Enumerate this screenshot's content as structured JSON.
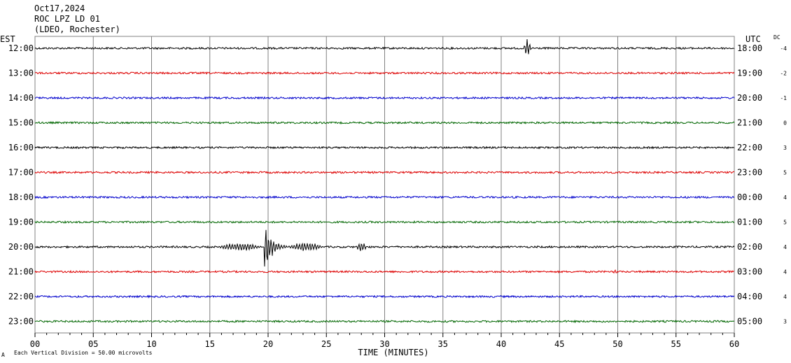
{
  "header": {
    "date": "Oct17,2024",
    "station": "ROC LPZ LD 01",
    "network": "(LDEO, Rochester)"
  },
  "labels": {
    "left_tz": "EST",
    "right_tz": "UTC",
    "dc": "DC"
  },
  "footer": {
    "scale_note": "Each Vertical Division =   50.00 microvolts",
    "mark": "A"
  },
  "colors": {
    "black": "#000000",
    "red": "#dd0000",
    "blue": "#0000cc",
    "green": "#006600",
    "grid": "#808080"
  },
  "chart_data": {
    "type": "line",
    "title": "ROC LPZ LD 01",
    "xlabel": "TIME (MINUTES)",
    "xlim": [
      0,
      60
    ],
    "x_ticks": [
      "00",
      "05",
      "10",
      "15",
      "20",
      "25",
      "30",
      "35",
      "40",
      "45",
      "50",
      "55",
      "60"
    ],
    "series": [
      {
        "est": "12:00",
        "utc": "18:00",
        "dc": "-4",
        "color": "black"
      },
      {
        "est": "13:00",
        "utc": "19:00",
        "dc": "-2",
        "color": "red"
      },
      {
        "est": "14:00",
        "utc": "20:00",
        "dc": "-1",
        "color": "blue"
      },
      {
        "est": "15:00",
        "utc": "21:00",
        "dc": "0",
        "color": "green"
      },
      {
        "est": "16:00",
        "utc": "22:00",
        "dc": "3",
        "color": "black"
      },
      {
        "est": "17:00",
        "utc": "23:00",
        "dc": "5",
        "color": "red"
      },
      {
        "est": "18:00",
        "utc": "00:00",
        "dc": "4",
        "color": "blue"
      },
      {
        "est": "19:00",
        "utc": "01:00",
        "dc": "5",
        "color": "green"
      },
      {
        "est": "20:00",
        "utc": "02:00",
        "dc": "4",
        "color": "black"
      },
      {
        "est": "21:00",
        "utc": "03:00",
        "dc": "4",
        "color": "red"
      },
      {
        "est": "22:00",
        "utc": "04:00",
        "dc": "4",
        "color": "blue"
      },
      {
        "est": "23:00",
        "utc": "05:00",
        "dc": "3",
        "color": "green"
      }
    ],
    "events": [
      {
        "row": 0,
        "start_min": 41.9,
        "end_min": 42.6,
        "peak": 14
      },
      {
        "row": 8,
        "start_min": 15.5,
        "end_min": 19.6,
        "peak": 6
      },
      {
        "row": 8,
        "start_min": 19.6,
        "end_min": 21.6,
        "peak": 40
      },
      {
        "row": 8,
        "start_min": 21.6,
        "end_min": 24.8,
        "peak": 7
      },
      {
        "row": 8,
        "start_min": 27.5,
        "end_min": 28.5,
        "peak": 7
      },
      {
        "row": 9,
        "start_min": 49.6,
        "end_min": 50.0,
        "peak": 4
      }
    ]
  }
}
